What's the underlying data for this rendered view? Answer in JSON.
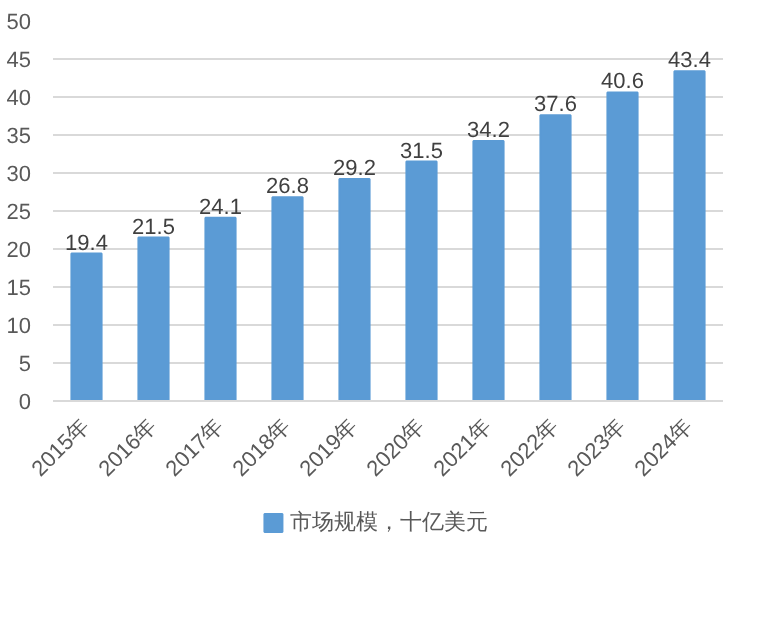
{
  "chart_data": {
    "type": "bar",
    "categories": [
      "2015年",
      "2016年",
      "2017年",
      "2018年",
      "2019年",
      "2020年",
      "2021年",
      "2022年",
      "2023年",
      "2024年"
    ],
    "series": [
      {
        "name": "市场规模，十亿美元",
        "color": "#5b9bd5",
        "values": [
          19.4,
          21.5,
          24.1,
          26.8,
          29.2,
          31.5,
          34.2,
          37.6,
          40.6,
          43.4
        ]
      }
    ],
    "ylim": [
      0,
      50
    ],
    "yticks": [
      0,
      5,
      10,
      15,
      20,
      25,
      30,
      35,
      40,
      45,
      50
    ],
    "grid": "y",
    "legend": "bottom",
    "data_labels": true
  }
}
